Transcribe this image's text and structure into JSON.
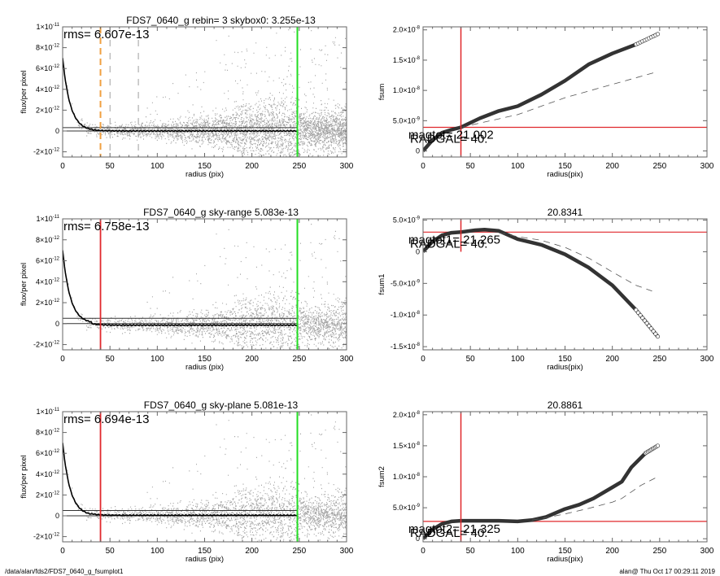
{
  "footer": {
    "path": "/data/alan/fds2/FDS7_0640_g_fsumplot1",
    "stamp": "alan@  Thu Oct 17 00:29:11 2019"
  },
  "colors": {
    "red": "#e0282c",
    "green": "#22dd22",
    "orange": "#f0a040",
    "scatter": "#a0a0a0",
    "scatter_dark": "#505050"
  },
  "chart_data": [
    {
      "id": "profile0",
      "type": "scatter",
      "title": "FDS7_0640_g rebin= 3    skybox0:  3.255e-13",
      "xlabel": "radius (pix)",
      "ylabel": "flux/per pixel",
      "xlim": [
        0,
        300
      ],
      "ylim": [
        -2.5e-12,
        1e-11
      ],
      "xticks": [
        "0",
        "50",
        "100",
        "150",
        "200",
        "250",
        "300"
      ],
      "yticks": [
        {
          "v": 1e-11,
          "l": "1×10",
          "e": "-11"
        },
        {
          "v": 8e-12,
          "l": "8×10",
          "e": "-12"
        },
        {
          "v": 6e-12,
          "l": "6×10",
          "e": "-12"
        },
        {
          "v": 4e-12,
          "l": "4×10",
          "e": "-12"
        },
        {
          "v": 2e-12,
          "l": "2×10",
          "e": "-12"
        },
        {
          "v": 0,
          "l": "0",
          "e": ""
        },
        {
          "v": -2e-12,
          "l": "-2×10",
          "e": "-12"
        }
      ],
      "annotation": "rms= 6.607e-13",
      "sky_level": 3.255e-13,
      "vlines": [
        {
          "x": 40,
          "style": "orange-dashed"
        },
        {
          "x": 50,
          "style": "gray-dashed"
        },
        {
          "x": 80,
          "style": "gray-dashed"
        },
        {
          "x": 248,
          "style": "green"
        }
      ],
      "profile": {
        "peak": 7e-12,
        "scale": 8,
        "tail": 0.0
      },
      "grid": false
    },
    {
      "id": "fsum0",
      "type": "line",
      "title": "",
      "xlabel": "radius(pix)",
      "ylabel": "fsum",
      "xlim": [
        0,
        300
      ],
      "ylim": [
        -1e-09,
        2.05e-08
      ],
      "xticks": [
        "0",
        "50",
        "100",
        "150",
        "200",
        "250",
        "300"
      ],
      "yticks": [
        {
          "v": 2e-08,
          "l": "2.0×10",
          "e": "-8"
        },
        {
          "v": 1.5e-08,
          "l": "1.5×10",
          "e": "-8"
        },
        {
          "v": 1e-08,
          "l": "1.0×10",
          "e": "-8"
        },
        {
          "v": 5e-09,
          "l": "5.0×10",
          "e": "-9"
        },
        {
          "v": 0,
          "l": "0",
          "e": ""
        }
      ],
      "labels": [
        "magtot= 21.002",
        "RADGAL=    40."
      ],
      "hline": 3.9e-09,
      "vline": 40,
      "series": [
        {
          "name": "fsum",
          "x": [
            0,
            10,
            20,
            30,
            40,
            60,
            80,
            100,
            125,
            150,
            175,
            200,
            225,
            248
          ],
          "y": [
            0,
            1.8e-09,
            3e-09,
            3.5e-09,
            3.9e-09,
            5.4e-09,
            6.6e-09,
            7.4e-09,
            9.3e-09,
            1.16e-08,
            1.43e-08,
            1.61e-08,
            1.76e-08,
            1.93e-08
          ]
        },
        {
          "name": "dashed",
          "x": [
            40,
            80,
            100,
            150,
            200,
            248
          ],
          "y": [
            3.9e-09,
            5.3e-09,
            6e-09,
            8.8e-09,
            1.1e-08,
            1.31e-08
          ]
        }
      ]
    },
    {
      "id": "profile1",
      "type": "scatter",
      "title": "FDS7_0640_g sky-range  5.083e-13",
      "xlabel": "radius (pix)",
      "ylabel": "flux/per pixel",
      "xlim": [
        0,
        300
      ],
      "ylim": [
        -2.5e-12,
        1e-11
      ],
      "xticks": [
        "0",
        "50",
        "100",
        "150",
        "200",
        "250",
        "300"
      ],
      "yticks": [
        {
          "v": 1e-11,
          "l": "1×10",
          "e": "-11"
        },
        {
          "v": 8e-12,
          "l": "8×10",
          "e": "-12"
        },
        {
          "v": 6e-12,
          "l": "6×10",
          "e": "-12"
        },
        {
          "v": 4e-12,
          "l": "4×10",
          "e": "-12"
        },
        {
          "v": 2e-12,
          "l": "2×10",
          "e": "-12"
        },
        {
          "v": 0,
          "l": "0",
          "e": ""
        },
        {
          "v": -2e-12,
          "l": "-2×10",
          "e": "-12"
        }
      ],
      "annotation": "rms= 6.758e-13",
      "sky_level": 5.083e-13,
      "vlines": [
        {
          "x": 40,
          "style": "red"
        },
        {
          "x": 248,
          "style": "green"
        }
      ],
      "profile": {
        "peak": 7e-12,
        "scale": 8,
        "tail": -1.5e-13
      },
      "grid": false
    },
    {
      "id": "fsum1",
      "type": "line",
      "title": "20.8341",
      "xlabel": "radius(pix)",
      "ylabel": "fsum1",
      "xlim": [
        0,
        300
      ],
      "ylim": [
        -1.55e-08,
        5.2e-09
      ],
      "xticks": [
        "0",
        "50",
        "100",
        "150",
        "200",
        "250",
        "300"
      ],
      "yticks": [
        {
          "v": 5e-09,
          "l": "5.0×10",
          "e": "-9"
        },
        {
          "v": 0,
          "l": "0",
          "e": ""
        },
        {
          "v": -5e-09,
          "l": "-5.0×10",
          "e": "-9"
        },
        {
          "v": -1e-08,
          "l": "-1.0×10",
          "e": "-8"
        },
        {
          "v": -1.5e-08,
          "l": "-1.5×10",
          "e": "-8"
        }
      ],
      "labels": [
        "magtot1= 21.265",
        "RADGAL=    40."
      ],
      "hline": 3.1e-09,
      "vline": 40,
      "series": [
        {
          "name": "fsum1",
          "x": [
            0,
            10,
            20,
            30,
            40,
            55,
            65,
            80,
            100,
            125,
            150,
            175,
            200,
            225,
            248
          ],
          "y": [
            0,
            1.6e-09,
            2.6e-09,
            3e-09,
            3.1e-09,
            3.4e-09,
            3.5e-09,
            3.3e-09,
            2e-09,
            1.1e-09,
            -4e-10,
            -2.5e-09,
            -5.3e-09,
            -9.2e-09,
            -1.34e-08
          ]
        },
        {
          "name": "dashed",
          "x": [
            80,
            100,
            125,
            150,
            175,
            200,
            225,
            242
          ],
          "y": [
            3e-09,
            2.4e-09,
            1.8e-09,
            7e-10,
            -1e-09,
            -3.2e-09,
            -5.3e-09,
            -6.2e-09
          ]
        }
      ]
    },
    {
      "id": "profile2",
      "type": "scatter",
      "title": "FDS7_0640_g sky-plane  5.081e-13",
      "xlabel": "radius (pix)",
      "ylabel": "flux/per pixel",
      "xlim": [
        0,
        300
      ],
      "ylim": [
        -2.5e-12,
        1e-11
      ],
      "xticks": [
        "0",
        "50",
        "100",
        "150",
        "200",
        "250",
        "300"
      ],
      "yticks": [
        {
          "v": 1e-11,
          "l": "1×10",
          "e": "-11"
        },
        {
          "v": 8e-12,
          "l": "8×10",
          "e": "-12"
        },
        {
          "v": 6e-12,
          "l": "6×10",
          "e": "-12"
        },
        {
          "v": 4e-12,
          "l": "4×10",
          "e": "-12"
        },
        {
          "v": 2e-12,
          "l": "2×10",
          "e": "-12"
        },
        {
          "v": 0,
          "l": "0",
          "e": ""
        },
        {
          "v": -2e-12,
          "l": "-2×10",
          "e": "-12"
        }
      ],
      "annotation": "rms= 6.694e-13",
      "sky_level": 5.081e-13,
      "vlines": [
        {
          "x": 40,
          "style": "red"
        },
        {
          "x": 248,
          "style": "green"
        }
      ],
      "profile": {
        "peak": 7e-12,
        "scale": 8,
        "tail": 5e-14
      },
      "grid": false
    },
    {
      "id": "fsum2",
      "type": "line",
      "title": "20.8861",
      "xlabel": "radius(pix)",
      "ylabel": "fsum2",
      "xlim": [
        0,
        300
      ],
      "ylim": [
        -5e-10,
        2.05e-08
      ],
      "xticks": [
        "0",
        "50",
        "100",
        "150",
        "200",
        "250",
        "300"
      ],
      "yticks": [
        {
          "v": 2e-08,
          "l": "2.0×10",
          "e": "-8"
        },
        {
          "v": 1.5e-08,
          "l": "1.5×10",
          "e": "-8"
        },
        {
          "v": 1e-08,
          "l": "1.0×10",
          "e": "-8"
        },
        {
          "v": 5e-09,
          "l": "5.0×10",
          "e": "-9"
        },
        {
          "v": 0,
          "l": "0",
          "e": ""
        }
      ],
      "labels": [
        "magtot2= 21.325",
        "RADGAL=    40."
      ],
      "hline": 2.8e-09,
      "vline": 40,
      "series": [
        {
          "name": "fsum2",
          "x": [
            0,
            10,
            20,
            30,
            40,
            60,
            80,
            100,
            115,
            130,
            150,
            165,
            180,
            200,
            210,
            220,
            235,
            248
          ],
          "y": [
            0,
            1.5e-09,
            2.4e-09,
            2.8e-09,
            2.9e-09,
            2.9e-09,
            2.9e-09,
            2.8e-09,
            3e-09,
            3.5e-09,
            4.8e-09,
            5.5e-09,
            6.5e-09,
            8.3e-09,
            9.2e-09,
            1.15e-08,
            1.38e-08,
            1.5e-08
          ]
        },
        {
          "name": "dashed",
          "x": [
            115,
            130,
            150,
            175,
            200,
            210,
            230,
            248
          ],
          "y": [
            3e-09,
            3.4e-09,
            4e-09,
            4.9e-09,
            5.9e-09,
            6.5e-09,
            8.6e-09,
            1e-08
          ]
        }
      ]
    }
  ]
}
